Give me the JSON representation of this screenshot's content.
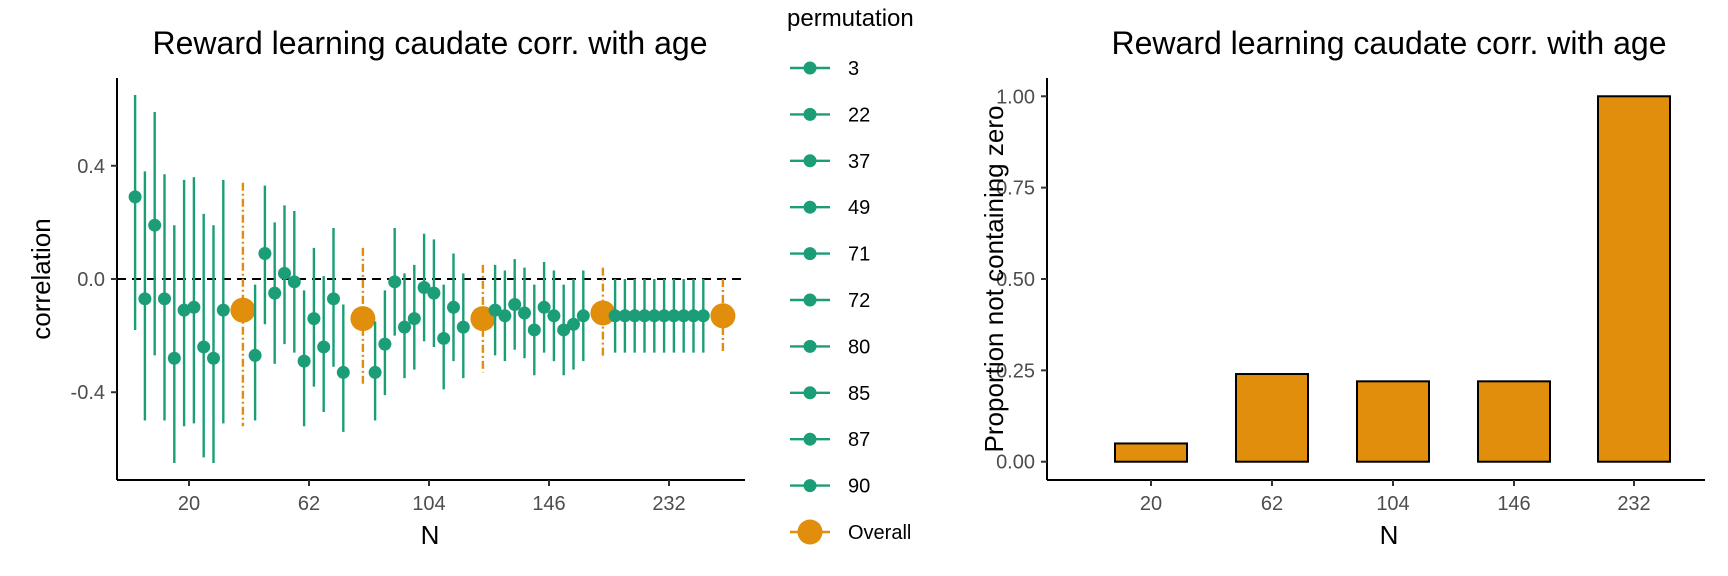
{
  "chart_data": [
    {
      "type": "scatter",
      "title": "Reward learning caudate corr. with age",
      "xlabel": "N",
      "ylabel": "correlation",
      "x_categories": [
        "20",
        "62",
        "104",
        "146",
        "232"
      ],
      "y_ticks": [
        "-0.4",
        "0.0",
        "0.4"
      ],
      "ylim": [
        -0.71,
        0.71
      ],
      "reference_line": 0,
      "legend": {
        "title": "permutation",
        "placement": "right",
        "entries": [
          "3",
          "22",
          "37",
          "49",
          "71",
          "72",
          "80",
          "85",
          "87",
          "90",
          "Overall"
        ]
      },
      "groups": [
        {
          "N": "20",
          "permutations": [
            {
              "permutation": "3",
              "r": 0.29,
              "lo": -0.18,
              "hi": 0.65
            },
            {
              "permutation": "22",
              "r": -0.07,
              "lo": -0.5,
              "hi": 0.38
            },
            {
              "permutation": "37",
              "r": 0.19,
              "lo": -0.27,
              "hi": 0.59
            },
            {
              "permutation": "49",
              "r": -0.07,
              "lo": -0.5,
              "hi": 0.37
            },
            {
              "permutation": "71",
              "r": -0.28,
              "lo": -0.65,
              "hi": 0.19
            },
            {
              "permutation": "72",
              "r": -0.11,
              "lo": -0.52,
              "hi": 0.35
            },
            {
              "permutation": "80",
              "r": -0.1,
              "lo": -0.51,
              "hi": 0.36
            },
            {
              "permutation": "85",
              "r": -0.24,
              "lo": -0.63,
              "hi": 0.23
            },
            {
              "permutation": "87",
              "r": -0.28,
              "lo": -0.65,
              "hi": 0.19
            },
            {
              "permutation": "90",
              "r": -0.11,
              "lo": -0.51,
              "hi": 0.35
            }
          ],
          "overall": {
            "r": -0.11,
            "lo": -0.52,
            "hi": 0.34
          }
        },
        {
          "N": "62",
          "permutations": [
            {
              "permutation": "3",
              "r": -0.27,
              "lo": -0.5,
              "hi": -0.02
            },
            {
              "permutation": "22",
              "r": 0.09,
              "lo": -0.16,
              "hi": 0.33
            },
            {
              "permutation": "37",
              "r": -0.05,
              "lo": -0.3,
              "hi": 0.2
            },
            {
              "permutation": "49",
              "r": 0.02,
              "lo": -0.23,
              "hi": 0.26
            },
            {
              "permutation": "71",
              "r": -0.01,
              "lo": -0.26,
              "hi": 0.24
            },
            {
              "permutation": "72",
              "r": -0.29,
              "lo": -0.52,
              "hi": -0.04
            },
            {
              "permutation": "80",
              "r": -0.14,
              "lo": -0.38,
              "hi": 0.11
            },
            {
              "permutation": "85",
              "r": -0.24,
              "lo": -0.47,
              "hi": 0.01
            },
            {
              "permutation": "87",
              "r": -0.07,
              "lo": -0.31,
              "hi": 0.18
            },
            {
              "permutation": "90",
              "r": -0.33,
              "lo": -0.54,
              "hi": -0.09
            }
          ],
          "overall": {
            "r": -0.14,
            "lo": -0.37,
            "hi": 0.11
          }
        },
        {
          "N": "104",
          "permutations": [
            {
              "permutation": "3",
              "r": -0.33,
              "lo": -0.5,
              "hi": -0.15
            },
            {
              "permutation": "22",
              "r": -0.23,
              "lo": -0.41,
              "hi": -0.04
            },
            {
              "permutation": "37",
              "r": -0.01,
              "lo": -0.2,
              "hi": 0.18
            },
            {
              "permutation": "49",
              "r": -0.17,
              "lo": -0.35,
              "hi": 0.02
            },
            {
              "permutation": "71",
              "r": -0.14,
              "lo": -0.32,
              "hi": 0.05
            },
            {
              "permutation": "72",
              "r": -0.03,
              "lo": -0.22,
              "hi": 0.16
            },
            {
              "permutation": "80",
              "r": -0.05,
              "lo": -0.24,
              "hi": 0.14
            },
            {
              "permutation": "85",
              "r": -0.21,
              "lo": -0.39,
              "hi": -0.02
            },
            {
              "permutation": "87",
              "r": -0.1,
              "lo": -0.29,
              "hi": 0.09
            },
            {
              "permutation": "90",
              "r": -0.17,
              "lo": -0.35,
              "hi": 0.02
            }
          ],
          "overall": {
            "r": -0.14,
            "lo": -0.33,
            "hi": 0.05
          }
        },
        {
          "N": "146",
          "permutations": [
            {
              "permutation": "3",
              "r": -0.11,
              "lo": -0.27,
              "hi": 0.05
            },
            {
              "permutation": "22",
              "r": -0.13,
              "lo": -0.29,
              "hi": 0.03
            },
            {
              "permutation": "37",
              "r": -0.09,
              "lo": -0.25,
              "hi": 0.07
            },
            {
              "permutation": "49",
              "r": -0.12,
              "lo": -0.28,
              "hi": 0.04
            },
            {
              "permutation": "71",
              "r": -0.18,
              "lo": -0.34,
              "hi": -0.02
            },
            {
              "permutation": "72",
              "r": -0.1,
              "lo": -0.26,
              "hi": 0.06
            },
            {
              "permutation": "80",
              "r": -0.13,
              "lo": -0.29,
              "hi": 0.03
            },
            {
              "permutation": "85",
              "r": -0.18,
              "lo": -0.34,
              "hi": -0.02
            },
            {
              "permutation": "87",
              "r": -0.16,
              "lo": -0.32,
              "hi": 0.0
            },
            {
              "permutation": "90",
              "r": -0.13,
              "lo": -0.29,
              "hi": 0.03
            }
          ],
          "overall": {
            "r": -0.12,
            "lo": -0.28,
            "hi": 0.04
          }
        },
        {
          "N": "232",
          "permutations": [
            {
              "permutation": "3",
              "r": -0.13,
              "lo": -0.26,
              "hi": 0.0
            },
            {
              "permutation": "22",
              "r": -0.13,
              "lo": -0.26,
              "hi": 0.0
            },
            {
              "permutation": "37",
              "r": -0.13,
              "lo": -0.26,
              "hi": 0.0
            },
            {
              "permutation": "49",
              "r": -0.13,
              "lo": -0.26,
              "hi": 0.0
            },
            {
              "permutation": "71",
              "r": -0.13,
              "lo": -0.26,
              "hi": 0.0
            },
            {
              "permutation": "72",
              "r": -0.13,
              "lo": -0.26,
              "hi": 0.0
            },
            {
              "permutation": "80",
              "r": -0.13,
              "lo": -0.26,
              "hi": 0.0
            },
            {
              "permutation": "85",
              "r": -0.13,
              "lo": -0.26,
              "hi": 0.0
            },
            {
              "permutation": "87",
              "r": -0.13,
              "lo": -0.26,
              "hi": 0.0
            },
            {
              "permutation": "90",
              "r": -0.13,
              "lo": -0.26,
              "hi": 0.0
            }
          ],
          "overall": {
            "r": -0.13,
            "lo": -0.26,
            "hi": 0.0
          }
        }
      ],
      "colors": {
        "permutation": "#1b9e77",
        "overall": "#e08e0b"
      }
    },
    {
      "type": "bar",
      "title": "Reward learning caudate corr. with age",
      "xlabel": "N",
      "ylabel": "Proportion not containing zero",
      "categories": [
        "20",
        "62",
        "104",
        "146",
        "232"
      ],
      "values": [
        0.05,
        0.24,
        0.22,
        0.22,
        1.0
      ],
      "y_ticks": [
        "0.00",
        "0.25",
        "0.50",
        "0.75",
        "1.00"
      ],
      "ylim": [
        -0.05,
        1.05
      ],
      "colors": {
        "bar_fill": "#e08e0b",
        "bar_stroke": "#000000"
      }
    }
  ]
}
